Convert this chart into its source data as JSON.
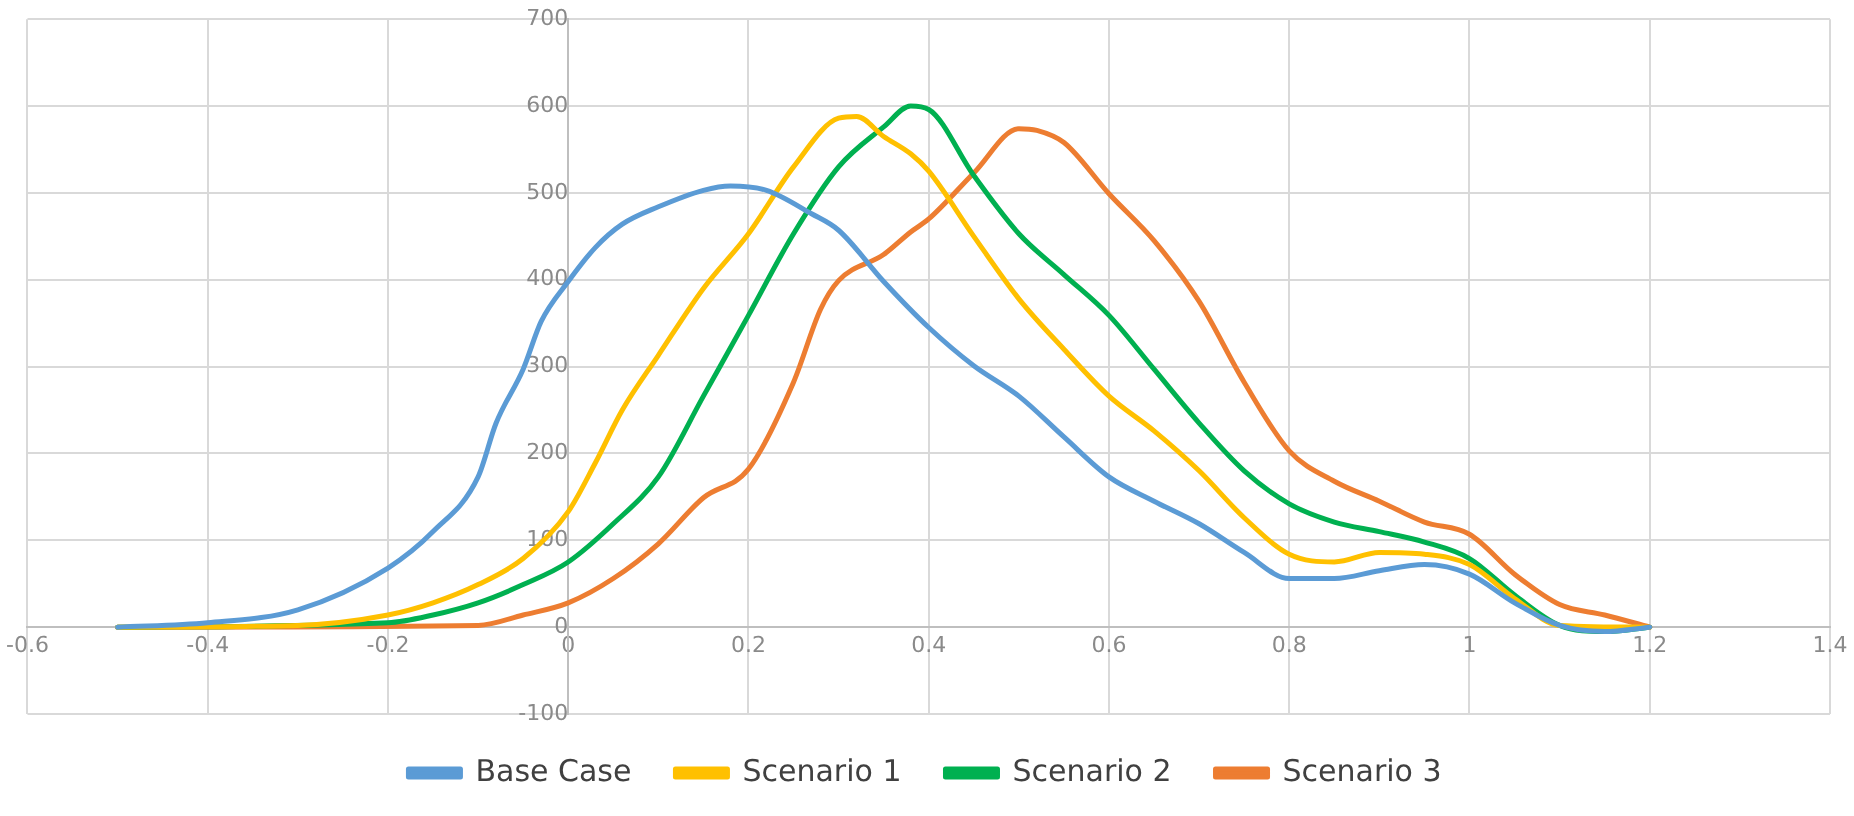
{
  "chart_data": {
    "type": "line",
    "xlim": [
      -0.6,
      1.4
    ],
    "xticks": [
      -0.6,
      -0.4,
      -0.2,
      0,
      0.2,
      0.4,
      0.6,
      0.8,
      1,
      1.2,
      1.4
    ],
    "ylim": [
      -100,
      700
    ],
    "yticks": [
      -100,
      0,
      100,
      200,
      300,
      400,
      500,
      600,
      700
    ],
    "grid": true,
    "legend": "bottom",
    "marker": "none",
    "line_style": "solid",
    "series": [
      {
        "name": "Base Case",
        "color": "#5b9bd5",
        "x": [
          -0.5,
          -0.4,
          -0.3,
          -0.2,
          -0.15,
          -0.1,
          -0.08,
          -0.05,
          -0.03,
          0,
          0.03,
          0.06,
          0.1,
          0.15,
          0.18,
          0.22,
          0.27,
          0.3,
          0.35,
          0.4,
          0.45,
          0.5,
          0.55,
          0.6,
          0.65,
          0.7,
          0.75,
          0.8,
          0.85,
          0.9,
          0.95,
          1,
          1.05,
          1.1,
          1.15,
          1.2
        ],
        "values": [
          0,
          5,
          20,
          68,
          110,
          173,
          235,
          297,
          352,
          398,
          437,
          464,
          484,
          503,
          508,
          503,
          476,
          457,
          398,
          345,
          301,
          266,
          219,
          173,
          145,
          119,
          86,
          56,
          56,
          65,
          72,
          61,
          28,
          2,
          -5,
          0
        ]
      },
      {
        "name": "Scenario 1",
        "color": "#ffc000",
        "x": [
          -0.5,
          -0.3,
          -0.2,
          -0.15,
          -0.1,
          -0.05,
          0,
          0.03,
          0.06,
          0.1,
          0.15,
          0.2,
          0.25,
          0.3,
          0.32,
          0.35,
          0.38,
          0.4,
          0.45,
          0.5,
          0.55,
          0.6,
          0.65,
          0.7,
          0.75,
          0.8,
          0.85,
          0.9,
          0.95,
          1,
          1.05,
          1.1,
          1.2
        ],
        "values": [
          0,
          2,
          14,
          28,
          49,
          79,
          133,
          189,
          250,
          313,
          390,
          453,
          530,
          586,
          588,
          565,
          545,
          525,
          450,
          378,
          320,
          266,
          226,
          180,
          126,
          84,
          75,
          86,
          84,
          72,
          33,
          2,
          0
        ]
      },
      {
        "name": "Scenario 2",
        "color": "#00b050",
        "x": [
          -0.5,
          -0.2,
          -0.15,
          -0.1,
          -0.05,
          0,
          0.05,
          0.1,
          0.15,
          0.2,
          0.25,
          0.3,
          0.35,
          0.38,
          0.4,
          0.45,
          0.5,
          0.55,
          0.6,
          0.65,
          0.7,
          0.75,
          0.8,
          0.85,
          0.9,
          0.95,
          1,
          1.05,
          1.1,
          1.15,
          1.2
        ],
        "values": [
          0,
          5,
          14,
          28,
          49,
          75,
          119,
          173,
          266,
          359,
          453,
          530,
          576,
          600,
          596,
          520,
          453,
          406,
          359,
          297,
          235,
          180,
          142,
          121,
          110,
          98,
          79,
          37,
          2,
          -5,
          0
        ]
      },
      {
        "name": "Scenario 3",
        "color": "#ed7d31",
        "x": [
          -0.5,
          -0.1,
          -0.05,
          0,
          0.05,
          0.1,
          0.15,
          0.2,
          0.25,
          0.28,
          0.3,
          0.35,
          0.38,
          0.4,
          0.45,
          0.5,
          0.52,
          0.55,
          0.6,
          0.65,
          0.7,
          0.75,
          0.8,
          0.85,
          0.9,
          0.95,
          1,
          1.05,
          1.1,
          1.15,
          1.2
        ],
        "values": [
          0,
          2,
          14,
          28,
          56,
          96,
          149,
          182,
          282,
          366,
          399,
          429,
          455,
          470,
          523,
          574,
          572,
          558,
          499,
          445,
          375,
          282,
          203,
          168,
          145,
          121,
          107,
          61,
          26,
          14,
          0
        ]
      }
    ]
  }
}
